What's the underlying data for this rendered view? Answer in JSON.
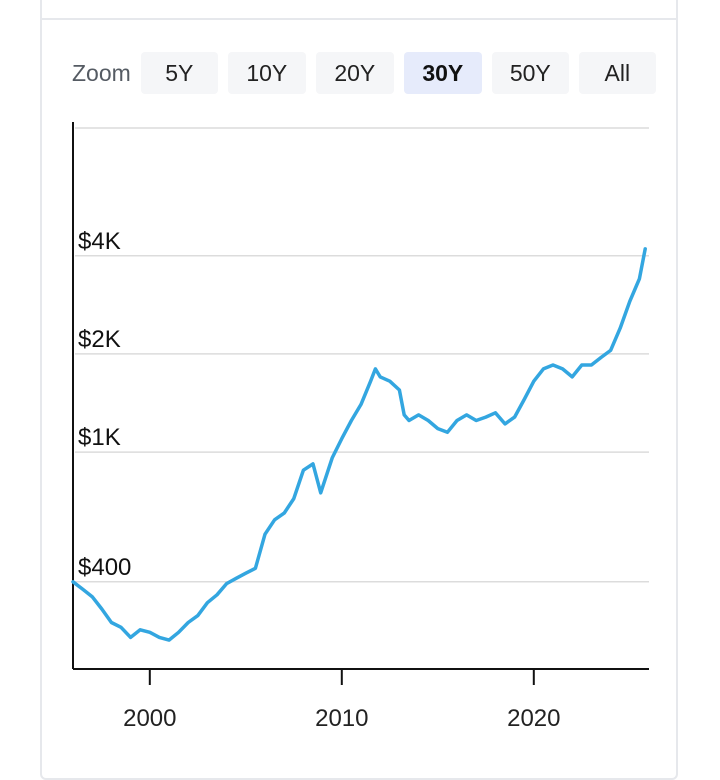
{
  "zoom": {
    "label": "Zoom",
    "options": [
      "5Y",
      "10Y",
      "20Y",
      "30Y",
      "50Y",
      "All"
    ],
    "selected": "30Y"
  },
  "colors": {
    "line": "#33a6e0",
    "grid": "#dcdcdc",
    "active_bg": "#e6ebfb",
    "button_bg": "#f5f6f8"
  },
  "chart_data": {
    "type": "line",
    "title": "",
    "xlabel": "",
    "ylabel": "",
    "y_scale": "log",
    "grid": true,
    "y_ticks": [
      {
        "value": 400,
        "label": "$400"
      },
      {
        "value": 1000,
        "label": "$1K"
      },
      {
        "value": 2000,
        "label": "$2K"
      },
      {
        "value": 4000,
        "label": "$4K"
      }
    ],
    "x_ticks": [
      {
        "value": 2000,
        "label": "2000"
      },
      {
        "value": 2010,
        "label": "2010"
      },
      {
        "value": 2020,
        "label": "2020"
      }
    ],
    "xlim": [
      1996,
      2026
    ],
    "series": [
      {
        "x": [
          1996.0,
          1996.5,
          1997.0,
          1997.5,
          1998.0,
          1998.5,
          1999.0,
          1999.5,
          2000.0,
          2000.5,
          2001.0,
          2001.5,
          2002.0,
          2002.5,
          2003.0,
          2003.5,
          2004.0,
          2004.5,
          2005.0,
          2005.5,
          2006.0,
          2006.5,
          2007.0,
          2007.5,
          2008.0,
          2008.5,
          2008.9,
          2009.5,
          2010.0,
          2010.5,
          2011.0,
          2011.5,
          2011.75,
          2012.0,
          2012.5,
          2013.0,
          2013.25,
          2013.5,
          2014.0,
          2014.5,
          2015.0,
          2015.5,
          2016.0,
          2016.5,
          2017.0,
          2017.5,
          2018.0,
          2018.5,
          2019.0,
          2019.5,
          2020.0,
          2020.5,
          2021.0,
          2021.5,
          2022.0,
          2022.5,
          2023.0,
          2023.5,
          2024.0,
          2024.5,
          2025.0,
          2025.5,
          2025.8
        ],
        "y": [
          400,
          380,
          360,
          330,
          300,
          290,
          270,
          285,
          280,
          270,
          265,
          280,
          300,
          315,
          345,
          365,
          395,
          410,
          425,
          440,
          560,
          620,
          650,
          720,
          880,
          920,
          750,
          960,
          1100,
          1250,
          1400,
          1650,
          1800,
          1700,
          1650,
          1550,
          1300,
          1250,
          1300,
          1250,
          1180,
          1150,
          1250,
          1300,
          1250,
          1280,
          1320,
          1220,
          1280,
          1450,
          1650,
          1800,
          1850,
          1800,
          1700,
          1850,
          1850,
          1950,
          2050,
          2400,
          2900,
          3400,
          4200
        ]
      }
    ]
  }
}
